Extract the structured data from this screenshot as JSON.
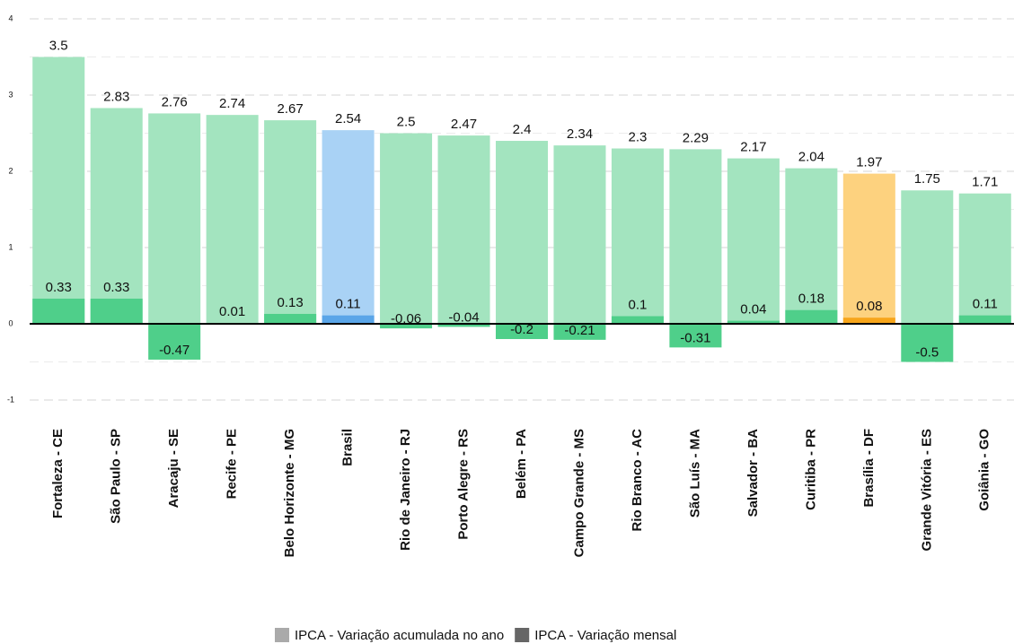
{
  "chart_data": {
    "type": "bar",
    "categories": [
      "Fortaleza - CE",
      "São Paulo - SP",
      "Aracaju - SE",
      "Recife - PE",
      "Belo Horizonte - MG",
      "Brasil",
      "Rio de Janeiro - RJ",
      "Porto Alegre - RS",
      "Belém - PA",
      "Campo Grande - MS",
      "Rio Branco - AC",
      "São Luís - MA",
      "Salvador - BA",
      "Curitiba - PR",
      "Brasília - DF",
      "Grande Vitória - ES",
      "Goiânia - GO"
    ],
    "series": [
      {
        "name": "IPCA - Variação acumulada no ano",
        "color": "#aaaaaa",
        "values": [
          3.5,
          2.83,
          2.76,
          2.74,
          2.67,
          2.54,
          2.5,
          2.47,
          2.4,
          2.34,
          2.3,
          2.29,
          2.17,
          2.04,
          1.97,
          1.75,
          1.71
        ],
        "colors": [
          "#a3e4bf",
          "#a3e4bf",
          "#a3e4bf",
          "#a3e4bf",
          "#a3e4bf",
          "#a9d2f5",
          "#a3e4bf",
          "#a3e4bf",
          "#a3e4bf",
          "#a3e4bf",
          "#a3e4bf",
          "#a3e4bf",
          "#a3e4bf",
          "#a3e4bf",
          "#fdd27f",
          "#a3e4bf",
          "#a3e4bf"
        ]
      },
      {
        "name": "IPCA - Variação mensal",
        "color": "#666666",
        "values": [
          0.33,
          0.33,
          -0.47,
          0.01,
          0.13,
          0.11,
          -0.06,
          -0.04,
          -0.2,
          -0.21,
          0.1,
          -0.31,
          0.04,
          0.18,
          0.08,
          -0.5,
          0.11
        ],
        "colors": [
          "#4fcf8a",
          "#4fcf8a",
          "#4fcf8a",
          "#4fcf8a",
          "#4fcf8a",
          "#5aa5e8",
          "#4fcf8a",
          "#4fcf8a",
          "#4fcf8a",
          "#4fcf8a",
          "#4fcf8a",
          "#4fcf8a",
          "#4fcf8a",
          "#4fcf8a",
          "#f7a51a",
          "#4fcf8a",
          "#4fcf8a"
        ]
      }
    ],
    "ylim": [
      -1.2,
      4.13
    ],
    "yticks": [
      -1,
      0,
      1,
      2,
      3,
      4
    ],
    "grid": true,
    "legend": "bottom"
  }
}
